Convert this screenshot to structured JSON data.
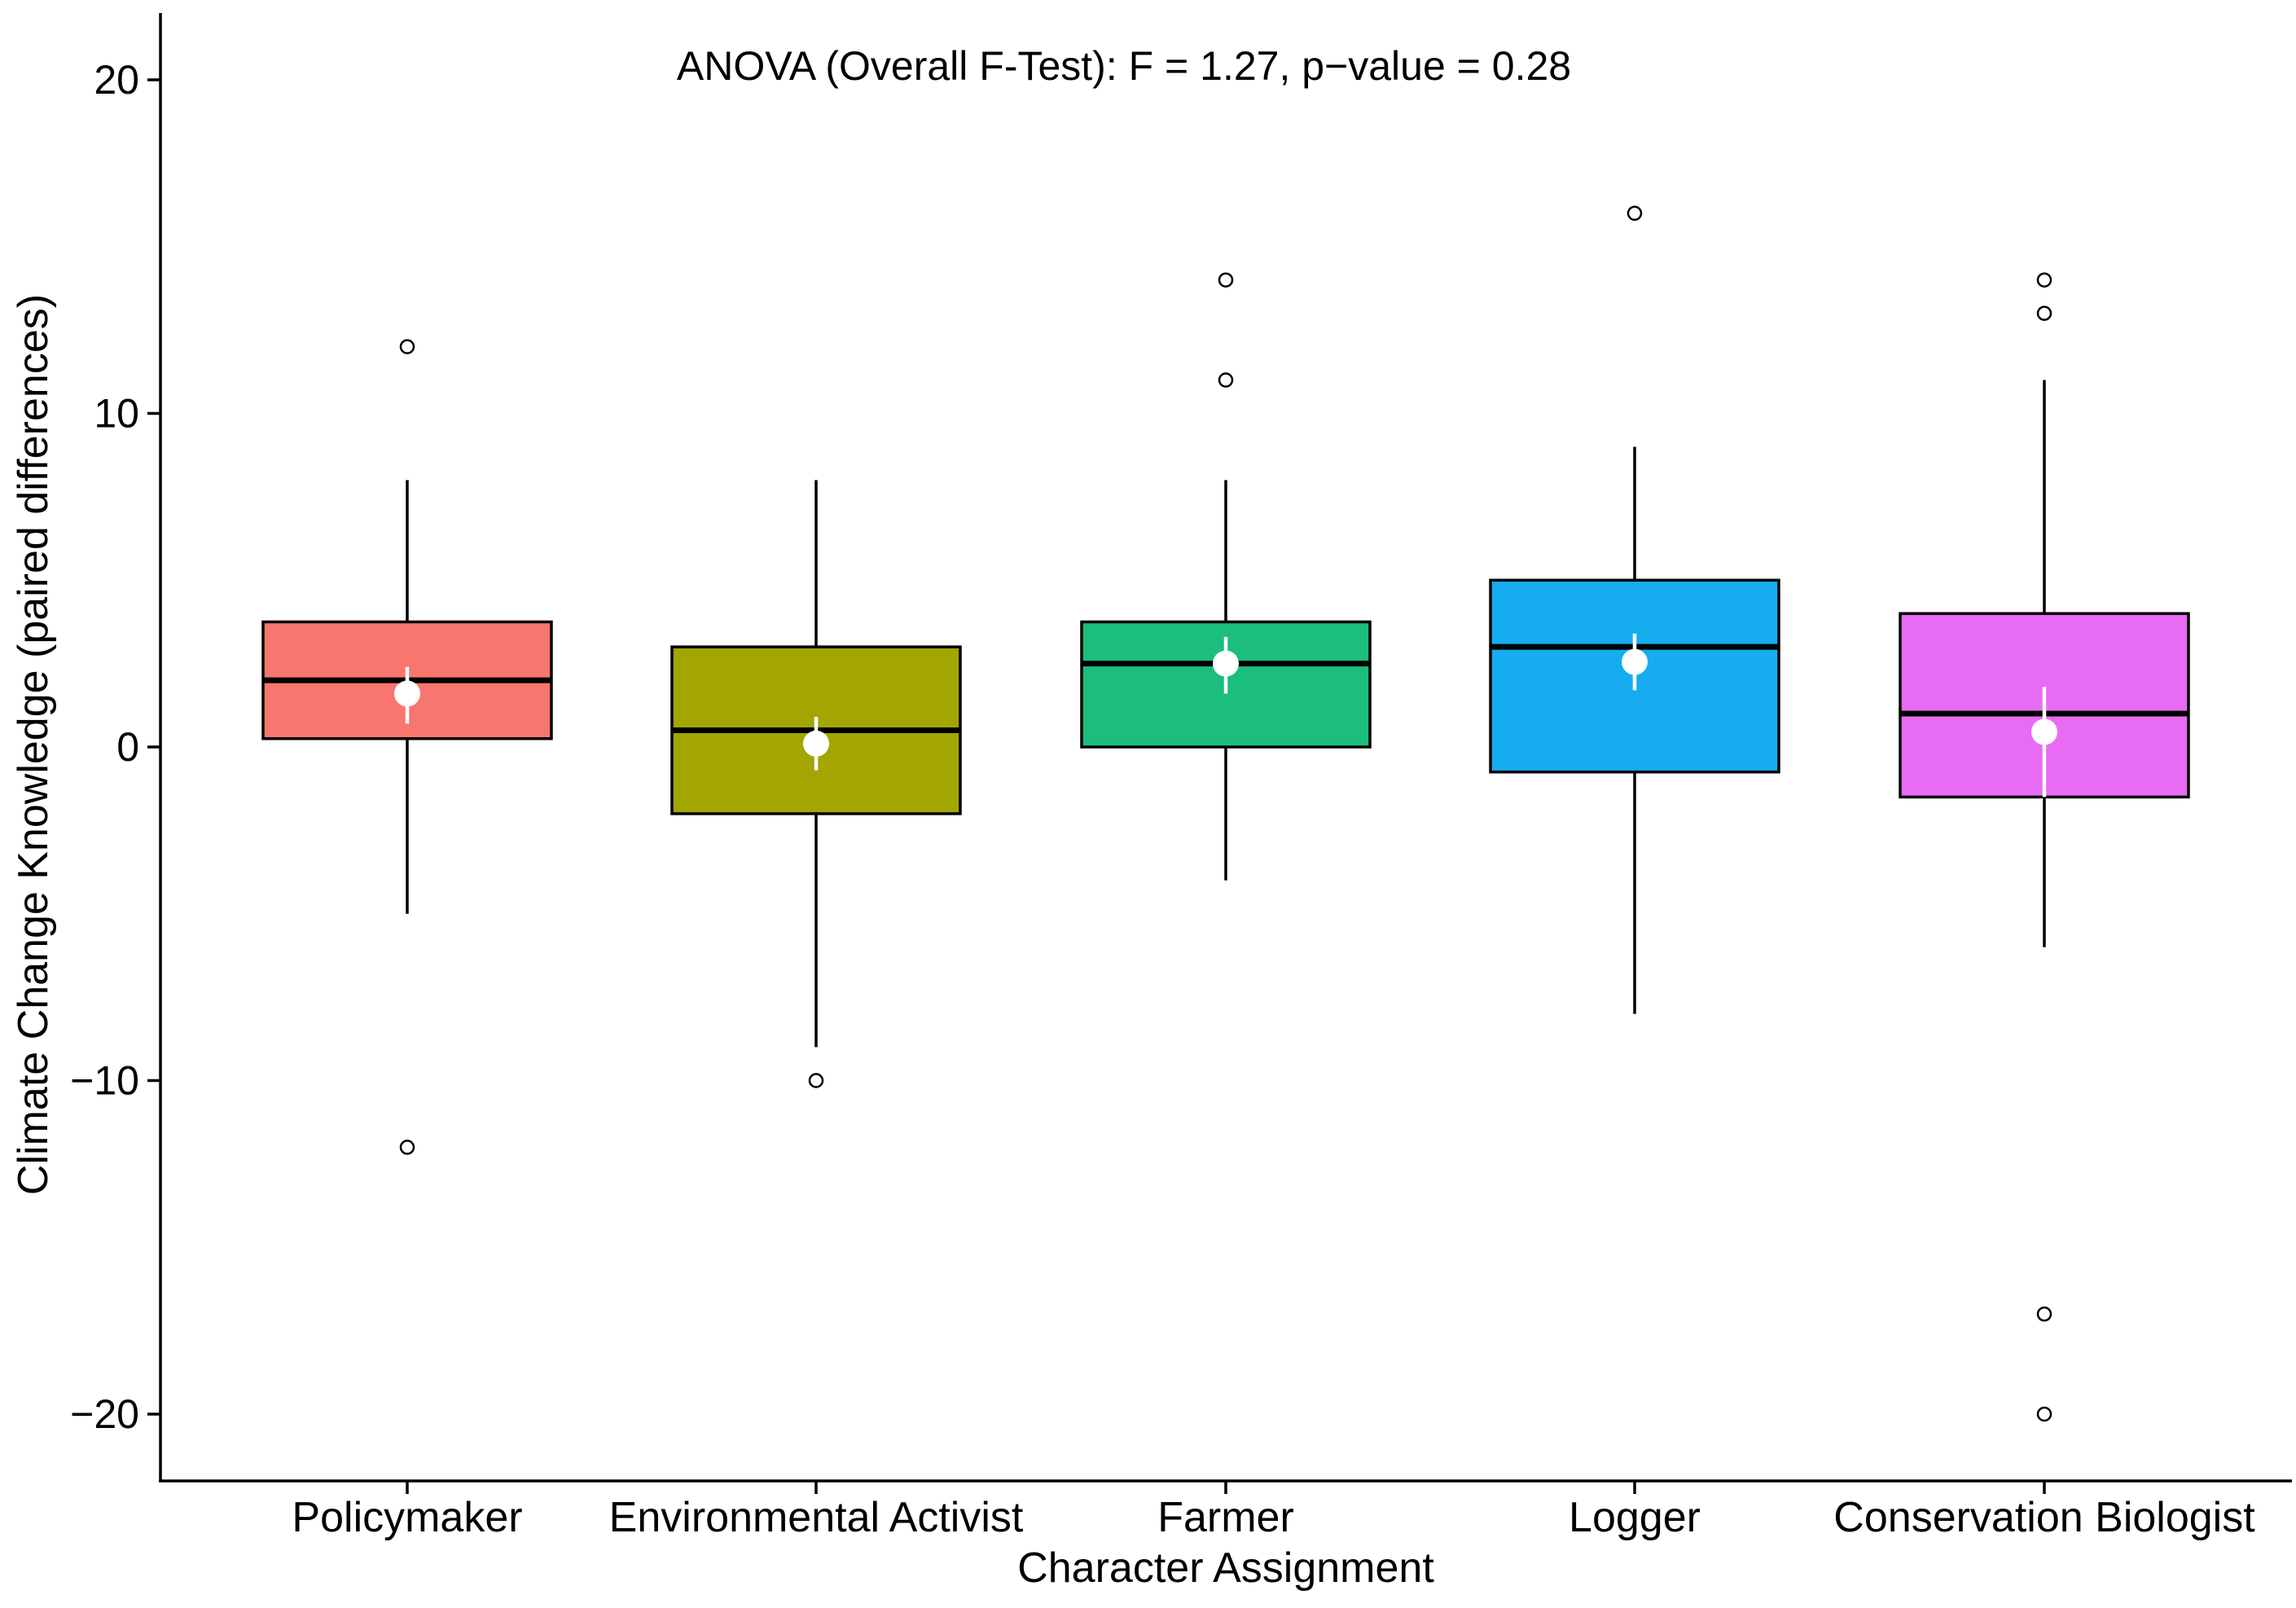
{
  "chart_data": {
    "type": "box",
    "title": "ANOVA (Overall F-Test): F = 1.27, p−value = 0.28",
    "xlabel": "Character Assignment",
    "ylabel": "Climate Change Knowledge (paired differences)",
    "ylim": [
      -22,
      22
    ],
    "yticks": [
      -20,
      -10,
      0,
      10,
      20
    ],
    "ytick_labels": [
      "−20",
      "−10",
      "0",
      "10",
      "20"
    ],
    "grid": false,
    "legend": "none",
    "categories": [
      "Policymaker",
      "Environmental Activist",
      "Farmer",
      "Logger",
      "Conservation Biologist"
    ],
    "series": [
      {
        "name": "Policymaker",
        "color": "#F8766D",
        "q1": 0.25,
        "median": 2,
        "q3": 3.75,
        "whisker_low": -5,
        "whisker_high": 8,
        "outliers": [
          12,
          -12
        ],
        "mean": 1.6,
        "mean_ci": [
          0.7,
          2.4
        ]
      },
      {
        "name": "Environmental Activist",
        "color": "#A3A500",
        "q1": -2,
        "median": 0.5,
        "q3": 3,
        "whisker_low": -9,
        "whisker_high": 8,
        "outliers": [
          -10
        ],
        "mean": 0.1,
        "mean_ci": [
          -0.7,
          0.9
        ]
      },
      {
        "name": "Farmer",
        "color": "#1BBE7D",
        "q1": 0,
        "median": 2.5,
        "q3": 3.75,
        "whisker_low": -4,
        "whisker_high": 8,
        "outliers": [
          14,
          11
        ],
        "mean": 2.5,
        "mean_ci": [
          1.6,
          3.3
        ]
      },
      {
        "name": "Logger",
        "color": "#15ADEF",
        "q1": -0.75,
        "median": 3,
        "q3": 5,
        "whisker_low": -8,
        "whisker_high": 9,
        "outliers": [
          16
        ],
        "mean": 2.55,
        "mean_ci": [
          1.7,
          3.4
        ]
      },
      {
        "name": "Conservation Biologist",
        "color": "#E76BF3",
        "q1": -1.5,
        "median": 1,
        "q3": 4,
        "whisker_low": -6,
        "whisker_high": 11,
        "outliers": [
          14,
          13,
          -17,
          -20
        ],
        "mean": 0.45,
        "mean_ci": [
          -1.5,
          1.8
        ]
      }
    ]
  }
}
